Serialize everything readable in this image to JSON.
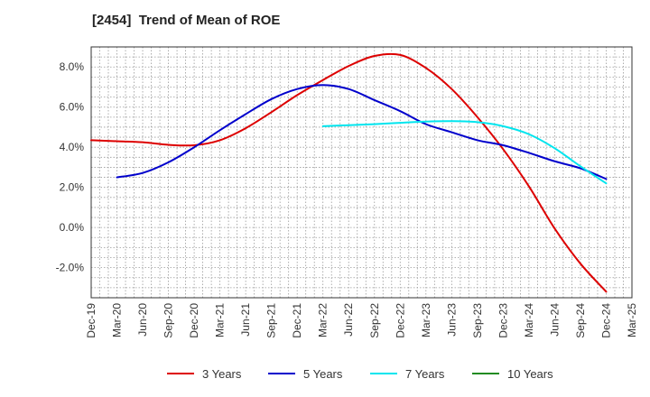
{
  "chart_data": {
    "type": "line",
    "title": "[2454]  Trend of Mean of ROE",
    "xlabel": "",
    "ylabel": "",
    "x_tick_labels": [
      "Dec-19",
      "Mar-20",
      "Jun-20",
      "Sep-20",
      "Dec-20",
      "Mar-21",
      "Jun-21",
      "Sep-21",
      "Dec-21",
      "Mar-22",
      "Jun-22",
      "Sep-22",
      "Dec-22",
      "Mar-23",
      "Jun-23",
      "Sep-23",
      "Dec-23",
      "Mar-24",
      "Jun-24",
      "Sep-24",
      "Dec-24",
      "Mar-25"
    ],
    "y_tick_labels": [
      "8.0%",
      "6.0%",
      "4.0%",
      "2.0%",
      "0.0%",
      "-2.0%"
    ],
    "y_ticks": [
      8,
      6,
      4,
      2,
      0,
      -2
    ],
    "ylim": [
      -3.5,
      9.0
    ],
    "grid": true,
    "legend_position": "bottom",
    "series": [
      {
        "name": "3 Years",
        "color": "#dd0000",
        "x": [
          "Dec-19",
          "Mar-20",
          "Jun-20",
          "Sep-20",
          "Dec-20",
          "Mar-21",
          "Jun-21",
          "Sep-21",
          "Dec-21",
          "Mar-22",
          "Jun-22",
          "Sep-22",
          "Dec-22",
          "Mar-23",
          "Jun-23",
          "Sep-23",
          "Dec-23",
          "Mar-24",
          "Jun-24",
          "Sep-24",
          "Dec-24"
        ],
        "values": [
          4.35,
          4.3,
          4.25,
          4.12,
          4.1,
          4.35,
          4.95,
          5.75,
          6.6,
          7.35,
          8.05,
          8.55,
          8.6,
          7.95,
          6.9,
          5.5,
          3.9,
          2.05,
          -0.05,
          -1.8,
          -3.2
        ]
      },
      {
        "name": "5 Years",
        "color": "#0000cc",
        "x": [
          "Mar-20",
          "Jun-20",
          "Sep-20",
          "Dec-20",
          "Mar-21",
          "Jun-21",
          "Sep-21",
          "Dec-21",
          "Mar-22",
          "Jun-22",
          "Sep-22",
          "Dec-22",
          "Mar-23",
          "Jun-23",
          "Sep-23",
          "Dec-23",
          "Mar-24",
          "Jun-24",
          "Sep-24",
          "Dec-24"
        ],
        "values": [
          2.5,
          2.72,
          3.25,
          4.0,
          4.85,
          5.65,
          6.4,
          6.9,
          7.1,
          6.9,
          6.35,
          5.8,
          5.15,
          4.75,
          4.35,
          4.1,
          3.72,
          3.3,
          2.95,
          2.42
        ]
      },
      {
        "name": "7 Years",
        "color": "#00e5ee",
        "x": [
          "Mar-22",
          "Jun-22",
          "Sep-22",
          "Dec-22",
          "Mar-23",
          "Jun-23",
          "Sep-23",
          "Dec-23",
          "Mar-24",
          "Jun-24",
          "Sep-24",
          "Dec-24"
        ],
        "values": [
          5.05,
          5.1,
          5.15,
          5.22,
          5.28,
          5.3,
          5.25,
          5.05,
          4.65,
          3.95,
          3.05,
          2.2
        ]
      },
      {
        "name": "10 Years",
        "color": "#228b22",
        "x": [],
        "values": []
      }
    ]
  }
}
